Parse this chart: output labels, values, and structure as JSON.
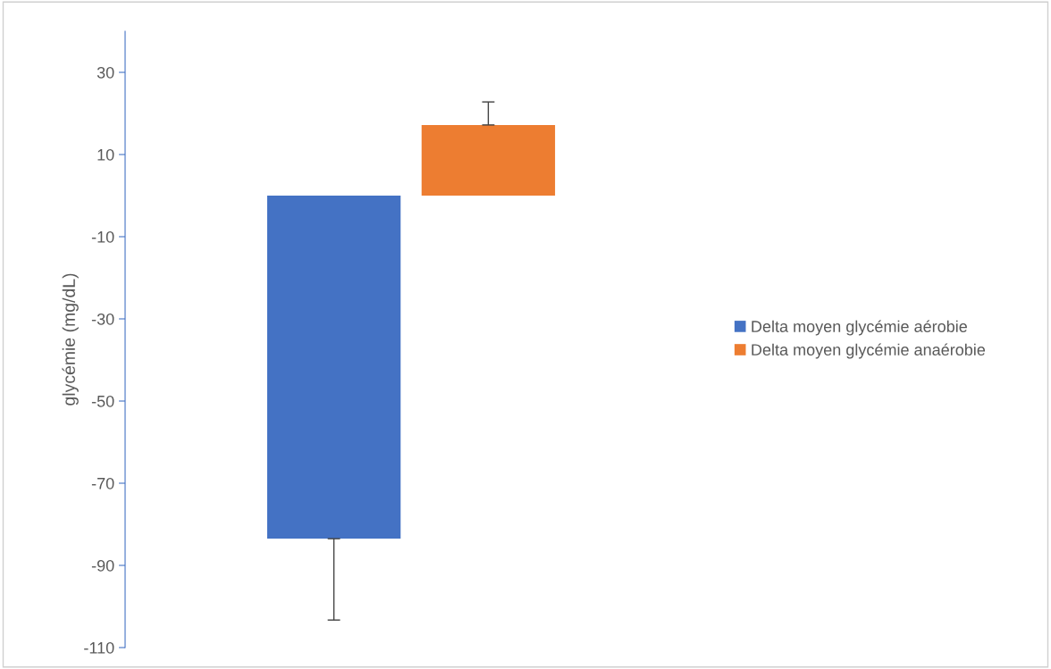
{
  "chart_data": {
    "type": "bar",
    "ylabel": "glycémie (mg/dL)",
    "categories": [
      null
    ],
    "series": [
      {
        "name": "Delta moyen glycémie aérobie",
        "color": "#4472c4",
        "values": [
          -83.5
        ],
        "errors": [
          [
            -103.3,
            -83.5
          ]
        ]
      },
      {
        "name": "Delta moyen glycémie anaérobie",
        "color": "#ed7d31",
        "values": [
          17.2
        ],
        "errors": [
          [
            17.2,
            22.8
          ]
        ]
      }
    ],
    "ylim": [
      -110,
      40
    ],
    "yticks": [
      -110,
      -90,
      -70,
      -50,
      -30,
      -10,
      10,
      30
    ],
    "grid": false,
    "legend": "right"
  }
}
